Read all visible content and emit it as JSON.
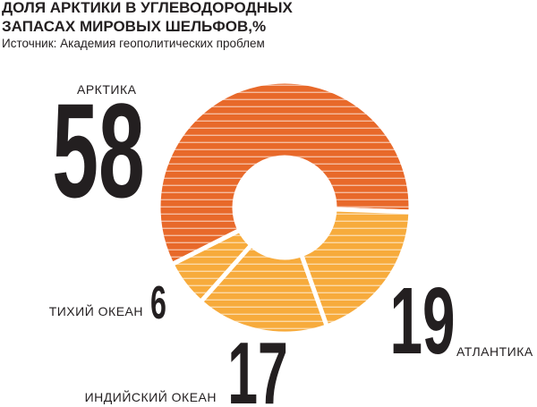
{
  "chart_data": {
    "type": "pie",
    "donut": true,
    "title": [
      "ДОЛЯ АРКТИКИ В УГЛЕВОДОРОДНЫХ",
      "ЗАПАСАХ МИРОВЫХ ШЕЛЬФОВ,%"
    ],
    "subtitle": "Источник: Академия геополитических проблем",
    "categories": [
      "АРКТИКА",
      "ТИХИЙ ОКЕАН",
      "ИНДИЙСКИЙ ОКЕАН",
      "АТЛАНТИКА"
    ],
    "values": [
      58,
      6,
      17,
      19
    ],
    "colors": [
      "#e8692a",
      "#f7ab3c",
      "#f7ab3c",
      "#f7ab3c"
    ]
  }
}
